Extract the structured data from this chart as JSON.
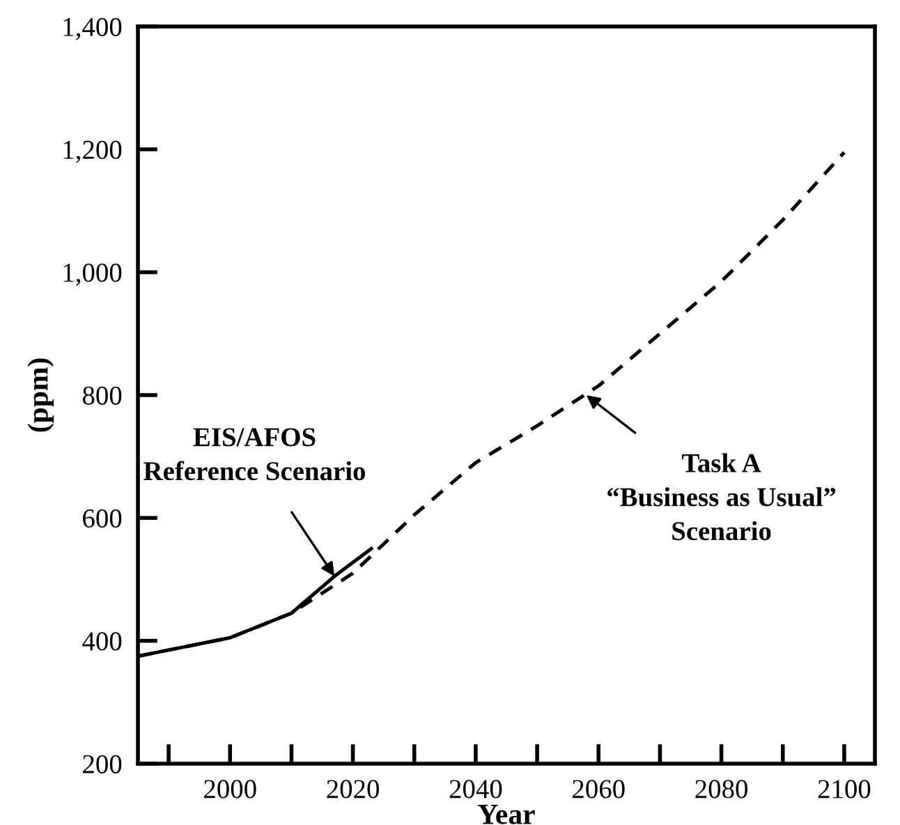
{
  "chart_data": {
    "type": "line",
    "xlabel": "Year",
    "ylabel": "(ppm)",
    "xlim": [
      1985,
      2105
    ],
    "ylim": [
      200,
      1400
    ],
    "xticks": [
      {
        "value": 1990,
        "label": null
      },
      2000,
      {
        "value": 2010,
        "label": null
      },
      2020,
      {
        "value": 2030,
        "label": null
      },
      2040,
      {
        "value": 2050,
        "label": null
      },
      2060,
      {
        "value": 2070,
        "label": null
      },
      2080,
      {
        "value": 2090,
        "label": null
      },
      2100
    ],
    "yticks": [
      {
        "value": 200,
        "label": "200"
      },
      {
        "value": 400,
        "label": "400"
      },
      {
        "value": 600,
        "label": "600"
      },
      {
        "value": 800,
        "label": "800"
      },
      {
        "value": 1000,
        "label": "1,000"
      },
      {
        "value": 1200,
        "label": "1,200"
      },
      {
        "value": 1400,
        "label": "1,400"
      }
    ],
    "series": [
      {
        "color": "#000000",
        "line_style": "solid",
        "x": [
          1985,
          1990,
          2000,
          2010,
          2017,
          2023
        ],
        "values": [
          375,
          385,
          405,
          445,
          505,
          550
        ]
      },
      {
        "color": "#000000",
        "line_style": "dashed",
        "x": [
          1985,
          1990,
          2000,
          2010,
          2020,
          2030,
          2040,
          2050,
          2060,
          2070,
          2080,
          2090,
          2100
        ],
        "values": [
          375,
          385,
          405,
          445,
          510,
          605,
          690,
          750,
          815,
          900,
          985,
          1085,
          1195
        ]
      }
    ],
    "annotations": [
      {
        "text": "EIS/AFOS\nReference Scenario",
        "x": 2017,
        "y": 505
      },
      {
        "text": "Task A\n“Business as Usual”\nScenario",
        "x": 2058,
        "y": 800
      }
    ],
    "grid": false,
    "legend": false
  }
}
